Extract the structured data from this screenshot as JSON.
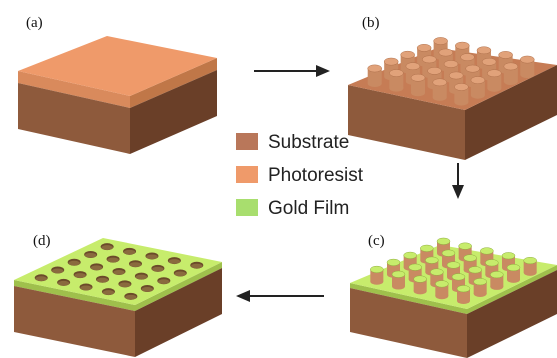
{
  "panels": [
    {
      "id": "a",
      "label": "(a)",
      "structure": "substrate + photoresist layer"
    },
    {
      "id": "b",
      "label": "(b)",
      "structure": "photoresist pillars on substrate"
    },
    {
      "id": "c",
      "label": "(c)",
      "structure": "gold film deposited around pillars"
    },
    {
      "id": "d",
      "label": "(d)",
      "structure": "gold film with hole array"
    }
  ],
  "legend": [
    {
      "label": "Substrate",
      "color": "#b9775a"
    },
    {
      "label": "Photoresist",
      "color": "#ef9a6a"
    },
    {
      "label": "Gold Film",
      "color": "#a8de6e"
    }
  ],
  "colors": {
    "substrate_side_left": "#8e5a3c",
    "substrate_side_right": "#6a3f28",
    "photoresist_top": "#ef9a6a",
    "photoresist_side_left": "#d98a5c",
    "photoresist_side_right": "#c07748",
    "substrate_top": "#c67c55",
    "pillar_body": "#c98a62",
    "pillar_top": "#e1a27a",
    "gold_top": "#c7ec6c",
    "gold_side": "#9fc04c",
    "hole_fill": "#6b4a2a",
    "arrow": "#222222"
  },
  "arrows": [
    {
      "from": "a",
      "to": "b",
      "direction": "right"
    },
    {
      "from": "b",
      "to": "c",
      "direction": "down"
    },
    {
      "from": "c",
      "to": "d",
      "direction": "left"
    }
  ]
}
